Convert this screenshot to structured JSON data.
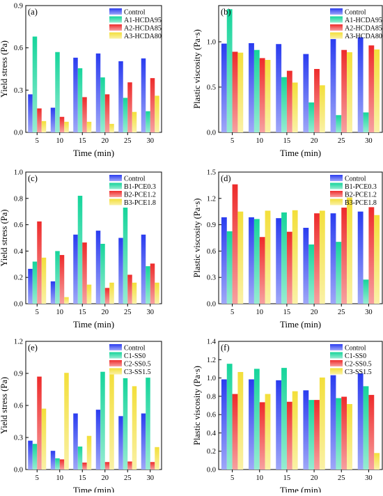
{
  "series_colors": [
    "#2a3cf0",
    "#16d59b",
    "#ee2b2b",
    "#f3df3a"
  ],
  "chart_data": [
    {
      "type": "bar",
      "panel_label": "(a)",
      "categories": [
        "5",
        "10",
        "15",
        "20",
        "25",
        "30"
      ],
      "xlabel": "Time (min)",
      "ylabel": "Yield stress (Pa)",
      "ylim": [
        0,
        0.9
      ],
      "yticks": [
        "0.0",
        "0.3",
        "0.6",
        "0.9"
      ],
      "yticks_v": [
        0,
        0.3,
        0.6,
        0.9
      ],
      "legend_position": "top-right",
      "grid": false,
      "series": [
        {
          "name": "Control",
          "values": [
            0.27,
            0.175,
            0.53,
            0.56,
            0.505,
            0.525
          ]
        },
        {
          "name": "A1-HCDA95",
          "values": [
            0.68,
            0.57,
            0.455,
            0.39,
            0.245,
            0.15
          ]
        },
        {
          "name": "A2-HCDA85",
          "values": [
            0.17,
            0.11,
            0.25,
            0.27,
            0.355,
            0.385
          ]
        },
        {
          "name": "A3-HCDA80",
          "values": [
            0.08,
            0.075,
            0.075,
            0.06,
            0.145,
            0.26
          ]
        }
      ]
    },
    {
      "type": "bar",
      "panel_label": "(b)",
      "categories": [
        "5",
        "10",
        "15",
        "20",
        "25",
        "30"
      ],
      "xlabel": "Time (min)",
      "ylabel": "Plastic viscosity (Pa·s)",
      "ylim": [
        0,
        1.4
      ],
      "yticks": [
        "0.0",
        "0.5",
        "1.0"
      ],
      "yticks_v": [
        0,
        0.5,
        1.0
      ],
      "legend_position": "top-right",
      "grid": false,
      "series": [
        {
          "name": "Control",
          "values": [
            0.98,
            0.985,
            0.975,
            0.865,
            1.03,
            1.05
          ]
        },
        {
          "name": "A1-HCDA95",
          "values": [
            1.36,
            0.91,
            0.61,
            0.33,
            0.19,
            0.22
          ]
        },
        {
          "name": "A2-HCDA85",
          "values": [
            0.89,
            0.82,
            0.68,
            0.7,
            0.91,
            0.96
          ]
        },
        {
          "name": "A3-HCDA80",
          "values": [
            0.88,
            0.8,
            0.55,
            0.52,
            0.885,
            0.915
          ]
        }
      ]
    },
    {
      "type": "bar",
      "panel_label": "(c)",
      "categories": [
        "5",
        "10",
        "15",
        "20",
        "25",
        "30"
      ],
      "xlabel": "Time (min)",
      "ylabel": "Yield stress (Pa)",
      "ylim": [
        0,
        1.0
      ],
      "yticks": [
        "0.0",
        "0.2",
        "0.4",
        "0.6",
        "0.8",
        "1.0"
      ],
      "yticks_v": [
        0,
        0.2,
        0.4,
        0.6,
        0.8,
        1.0
      ],
      "legend_position": "top-right",
      "grid": false,
      "series": [
        {
          "name": "Control",
          "values": [
            0.265,
            0.17,
            0.525,
            0.555,
            0.5,
            0.525
          ]
        },
        {
          "name": "B1-PCE0.3",
          "values": [
            0.32,
            0.4,
            0.82,
            0.455,
            0.73,
            0.285
          ]
        },
        {
          "name": "B2-PCE1.2",
          "values": [
            0.625,
            0.37,
            0.465,
            0.12,
            0.22,
            0.305
          ]
        },
        {
          "name": "B3-PCE1.8",
          "values": [
            0.35,
            0.05,
            0.145,
            0.16,
            0.16,
            0.16
          ]
        }
      ]
    },
    {
      "type": "bar",
      "panel_label": "(d)",
      "categories": [
        "5",
        "10",
        "15",
        "20",
        "25",
        "30"
      ],
      "xlabel": "Time (min)",
      "ylabel": "Plastic viscosity (Pa·s)",
      "ylim": [
        0,
        1.5
      ],
      "yticks": [
        "0.0",
        "0.3",
        "0.6",
        "0.9",
        "1.2",
        "1.5"
      ],
      "yticks_v": [
        0,
        0.3,
        0.6,
        0.9,
        1.2,
        1.5
      ],
      "legend_position": "top-right",
      "grid": false,
      "series": [
        {
          "name": "Control",
          "values": [
            0.985,
            0.985,
            0.975,
            0.865,
            1.03,
            1.05
          ]
        },
        {
          "name": "B1-PCE0.3",
          "values": [
            0.825,
            0.965,
            1.04,
            0.675,
            0.705,
            0.275
          ]
        },
        {
          "name": "B2-PCE1.2",
          "values": [
            1.36,
            0.76,
            0.82,
            1.03,
            1.095,
            1.1
          ]
        },
        {
          "name": "B3-PCE1.8",
          "values": [
            1.05,
            1.06,
            1.065,
            1.06,
            1.21,
            1.01
          ]
        }
      ]
    },
    {
      "type": "bar",
      "panel_label": "(e)",
      "categories": [
        "5",
        "10",
        "15",
        "20",
        "25",
        "30"
      ],
      "xlabel": "Time (min)",
      "ylabel": "Yield stress (Pa)",
      "ylim": [
        0,
        1.2
      ],
      "yticks": [
        "0.0",
        "0.3",
        "0.6",
        "0.9",
        "1.2"
      ],
      "yticks_v": [
        0,
        0.3,
        0.6,
        0.9,
        1.2
      ],
      "legend_position": "top-right",
      "grid": false,
      "series": [
        {
          "name": "Control",
          "values": [
            0.27,
            0.175,
            0.525,
            0.56,
            0.5,
            0.525
          ]
        },
        {
          "name": "C1-SS0",
          "values": [
            0.24,
            0.105,
            0.215,
            0.915,
            0.855,
            0.86
          ]
        },
        {
          "name": "C2-SS0.5",
          "values": [
            0.87,
            0.095,
            0.065,
            0.07,
            0.075,
            0.07
          ]
        },
        {
          "name": "C3-SS1.5",
          "values": [
            0.57,
            0.905,
            0.315,
            0.895,
            0.78,
            0.21
          ]
        }
      ]
    },
    {
      "type": "bar",
      "panel_label": "(f)",
      "categories": [
        "5",
        "10",
        "15",
        "20",
        "25",
        "30"
      ],
      "xlabel": "Time (min)",
      "ylabel": "Plastic viscosity (Pa·s)",
      "ylim": [
        0,
        1.4
      ],
      "yticks": [
        "0.0",
        "0.2",
        "0.4",
        "0.6",
        "0.8",
        "1.0",
        "1.2",
        "1.4"
      ],
      "yticks_v": [
        0,
        0.2,
        0.4,
        0.6,
        0.8,
        1.0,
        1.2,
        1.4
      ],
      "legend_position": "top-right",
      "grid": false,
      "series": [
        {
          "name": "Control",
          "values": [
            0.985,
            0.985,
            0.975,
            0.865,
            1.03,
            1.05
          ]
        },
        {
          "name": "C1-SS0",
          "values": [
            1.155,
            1.1,
            1.11,
            0.76,
            0.78,
            0.91
          ]
        },
        {
          "name": "C2-SS0.5",
          "values": [
            0.825,
            0.735,
            0.74,
            0.76,
            0.795,
            0.815
          ]
        },
        {
          "name": "C3-SS1.5",
          "values": [
            1.065,
            0.825,
            0.855,
            1.005,
            0.715,
            0.18
          ]
        }
      ]
    }
  ]
}
